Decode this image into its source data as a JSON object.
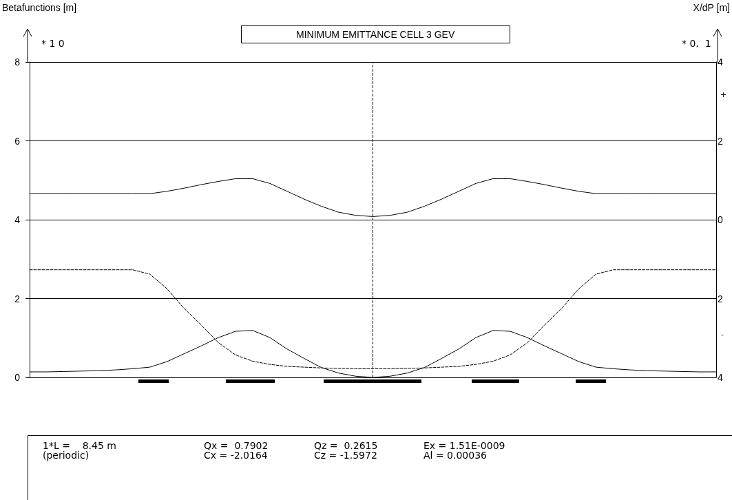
{
  "chart_data": {
    "type": "line",
    "title": "MINIMUM EMITTANCE CELL 3 GEV",
    "ylabel": "Betafunctions [m]",
    "y2label": "X/dP [m]",
    "categories": [
      null,
      null,
      null,
      null,
      null,
      null,
      null,
      null,
      null,
      null,
      null,
      null,
      null,
      null,
      null,
      null,
      null,
      null,
      null,
      null,
      null,
      null,
      null,
      null,
      null,
      null,
      null,
      null,
      null,
      null,
      null,
      null,
      null,
      null,
      null,
      null,
      null,
      null,
      null,
      null,
      null
    ],
    "ylim": [
      0,
      8
    ],
    "yticks": [
      0,
      2,
      4,
      6,
      8
    ],
    "y2lim": [
      -4,
      4
    ],
    "y2ticks": [
      {
        "value": -4,
        "label": "4"
      },
      {
        "value": -2,
        "label": "2"
      },
      0,
      2,
      4
    ],
    "tick_labels": "y",
    "grid": "y",
    "marker": "none",
    "series": [
      {
        "color": "#000000",
        "line_style": "solid",
        "values": [
          4.66,
          4.66,
          4.66,
          4.66,
          4.66,
          4.66,
          4.66,
          4.66,
          4.72,
          4.8,
          4.89,
          4.97,
          5.04,
          5.04,
          4.92,
          4.72,
          4.52,
          4.34,
          4.19,
          4.11,
          4.08,
          4.11,
          4.19,
          4.34,
          4.52,
          4.72,
          4.92,
          5.04,
          5.04,
          4.97,
          4.89,
          4.8,
          4.72,
          4.66,
          4.66,
          4.66,
          4.66,
          4.66,
          4.66,
          4.66,
          4.66
        ]
      },
      {
        "color": "#000000",
        "line_style": "solid",
        "values": [
          0.14,
          0.14,
          0.15,
          0.16,
          0.17,
          0.19,
          0.22,
          0.26,
          0.4,
          0.6,
          0.8,
          1.01,
          1.17,
          1.19,
          1.01,
          0.72,
          0.48,
          0.25,
          0.11,
          0.03,
          0.0,
          0.03,
          0.11,
          0.25,
          0.48,
          0.72,
          1.01,
          1.19,
          1.17,
          1.01,
          0.8,
          0.6,
          0.4,
          0.26,
          0.22,
          0.19,
          0.17,
          0.16,
          0.15,
          0.14,
          0.14
        ]
      },
      {
        "color": "#000000",
        "line_style": "dashed",
        "axis": "y2",
        "values": [
          -1.27,
          -1.27,
          -1.27,
          -1.27,
          -1.27,
          -1.27,
          -1.27,
          -1.38,
          -1.75,
          -2.25,
          -2.67,
          -3.12,
          -3.43,
          -3.59,
          -3.67,
          -3.72,
          -3.74,
          -3.76,
          -3.77,
          -3.78,
          -3.78,
          -3.78,
          -3.77,
          -3.76,
          -3.74,
          -3.72,
          -3.67,
          -3.59,
          -3.43,
          -3.12,
          -2.67,
          -2.25,
          -1.75,
          -1.38,
          -1.27,
          -1.27,
          -1.27,
          -1.27,
          -1.27,
          -1.27,
          -1.27
        ]
      }
    ],
    "ref_lines": [
      {
        "axis": "x",
        "value": null,
        "color": "#000000",
        "line_style": "dashed"
      }
    ],
    "annotations": [
      "* 1 0",
      "* 0.  1",
      "+",
      "-",
      "1*L =    8.45 m",
      "(periodic)",
      "Qx =  0.7902",
      "Cx = -2.0164",
      "Qz =  0.2615",
      "Cz = -1.5972",
      "Ex = 1.51E-0009",
      "Al = 0.00036"
    ]
  }
}
